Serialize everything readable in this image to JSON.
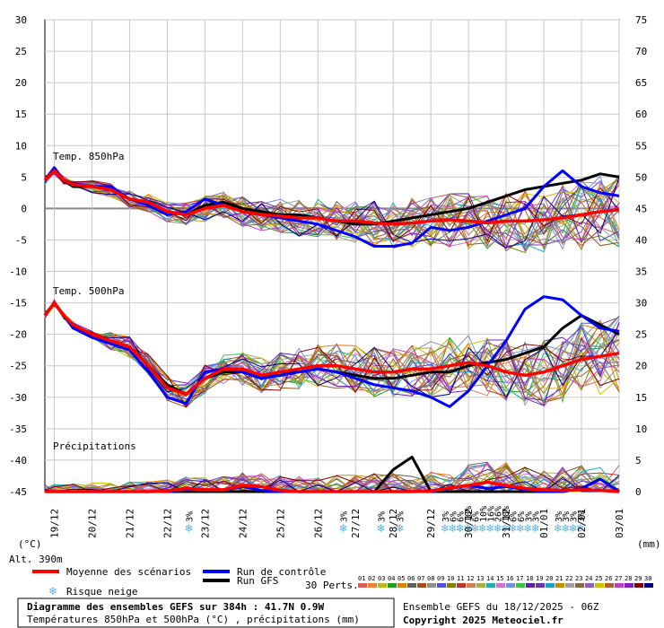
{
  "chart_data": {
    "type": "line",
    "title": "Diagramme des ensembles GEFS sur 384h : 41.7N 0.9W",
    "subtitle": "Températures 850hPa et 500hPa (°C) , précipitations (mm)",
    "run_info": "Ensemble GEFS du 18/12/2025 - 06Z",
    "copyright": "Copyright 2025 Meteociel.fr",
    "altitude": "Alt. 390m",
    "left_axis_unit": "(°C)",
    "right_axis_unit": "(mm)",
    "left_ticks": [
      "30",
      "25",
      "20",
      "15",
      "10",
      "5",
      "0",
      "-5",
      "-10",
      "-15",
      "-20",
      "-25",
      "-30",
      "-35",
      "-40",
      "-45"
    ],
    "right_ticks": [
      "75",
      "70",
      "65",
      "60",
      "55",
      "50",
      "45",
      "40",
      "35",
      "30",
      "25",
      "20",
      "15",
      "10",
      "5",
      "0"
    ],
    "ylim_left": [
      -45,
      30
    ],
    "x_dates": [
      "19/12",
      "20/12",
      "21/12",
      "22/12",
      "23/12",
      "24/12",
      "25/12",
      "26/12",
      "27/12",
      "28/12",
      "29/12",
      "30/12",
      "31/12",
      "01/01",
      "02/01",
      "03/01"
    ],
    "panel_labels": {
      "t850": "Temp. 850hPa",
      "t500": "Temp. 500hPa",
      "precip": "Précipitations"
    },
    "legend": {
      "mean": "Moyenne des scénarios",
      "control": "Run de contrôle",
      "gfs": "Run GFS",
      "snow": "Risque neige",
      "perts": "30 Perts.",
      "colors": {
        "mean": "#ff0000",
        "control": "#0000ff",
        "gfs": "#000000"
      },
      "member_numbers": [
        "01",
        "02",
        "03",
        "04",
        "05",
        "06",
        "07",
        "08",
        "09",
        "10",
        "11",
        "12",
        "13",
        "14",
        "15",
        "16",
        "17",
        "18",
        "19",
        "20",
        "21",
        "22",
        "23",
        "24",
        "25",
        "26",
        "27",
        "28",
        "29",
        "30"
      ],
      "member_colors": [
        "#e05a5a",
        "#f08030",
        "#b8b820",
        "#20a020",
        "#e08000",
        "#606060",
        "#a05020",
        "#909090",
        "#5050e0",
        "#808000",
        "#c03030",
        "#d08050",
        "#b0b040",
        "#20b0b0",
        "#d070d0",
        "#7090e0",
        "#40c040",
        "#6020a0",
        "#7030b0",
        "#20a0c0",
        "#c09000",
        "#a0a0a0",
        "#8a6a3a",
        "#9060c0",
        "#d0c000",
        "#b06030",
        "#c040c0",
        "#8020c0",
        "#800000",
        "#000080"
      ]
    },
    "snow_risk_label": "3%",
    "snow_risk_dates_x": [
      22.6,
      26.7,
      27.7,
      28.2,
      29.4,
      29.6,
      29.8,
      30.0,
      30.2,
      30.4,
      30.6,
      30.8,
      31.0,
      31.2,
      31.4,
      31.6,
      31.8,
      32.4,
      32.6,
      32.8,
      33.0
    ],
    "snow_risk_labels": [
      "3%",
      "3%",
      "3%",
      "3%",
      "3%",
      "6%",
      "6%",
      "10%",
      "6%",
      "10%",
      "16%",
      "26%",
      "10%",
      "6%",
      "6%",
      "3%",
      "3%",
      "3%",
      "3%",
      "3%",
      "3%"
    ],
    "t850": {
      "x": [
        18.75,
        19,
        19.25,
        19.5,
        20,
        20.5,
        21,
        21.5,
        22,
        22.5,
        23,
        23.5,
        24,
        24.5,
        25,
        25.5,
        26,
        26.5,
        27,
        27.5,
        28,
        28.5,
        29,
        29.5,
        30,
        30.5,
        31,
        31.5,
        32,
        32.5,
        33,
        33.5,
        34
      ],
      "mean": [
        4.5,
        6,
        4.5,
        3.8,
        3.5,
        3,
        1.5,
        1,
        -0.5,
        -1,
        0,
        0.5,
        -0.5,
        -1,
        -1.2,
        -1.5,
        -1.5,
        -2,
        -2,
        -2.3,
        -2.5,
        -2.3,
        -2,
        -1.8,
        -2,
        -2.3,
        -2,
        -2,
        -1.8,
        -1.5,
        -1,
        -0.5,
        -0.2
      ],
      "control": [
        4.5,
        6.5,
        4.5,
        4,
        3.5,
        3.5,
        1.5,
        0.5,
        -1,
        -0.5,
        1.5,
        0.5,
        -0.5,
        -1,
        -1.5,
        -2,
        -2.5,
        -3.5,
        -4.5,
        -6,
        -6,
        -5.5,
        -3,
        -3.5,
        -3,
        -2,
        -1,
        0,
        3.5,
        6,
        3.5,
        2.5,
        2
      ],
      "gfs": [
        4.5,
        6,
        4.5,
        3.5,
        3.5,
        3,
        1.5,
        1,
        -0.5,
        -1,
        0.5,
        1,
        0,
        -0.5,
        -1,
        -1,
        -1.5,
        -2,
        -2.5,
        -2.5,
        -2,
        -1.5,
        -1,
        -0.5,
        0,
        1,
        2,
        3,
        3.5,
        4,
        4.5,
        5.5,
        5
      ]
    },
    "t500": {
      "x": [
        18.75,
        19,
        19.25,
        19.5,
        20,
        20.5,
        21,
        21.5,
        22,
        22.5,
        23,
        23.5,
        24,
        24.5,
        25,
        25.5,
        26,
        26.5,
        27,
        27.5,
        28,
        28.5,
        29,
        29.5,
        30,
        30.5,
        31,
        31.5,
        32,
        32.5,
        33,
        33.5,
        34
      ],
      "mean": [
        -17,
        -15,
        -17,
        -18.5,
        -20,
        -21,
        -22,
        -25,
        -28.5,
        -29.5,
        -27,
        -25.5,
        -25.5,
        -26.5,
        -26,
        -25.5,
        -25,
        -25,
        -25.5,
        -26,
        -26,
        -25.5,
        -25.5,
        -25,
        -24.5,
        -25,
        -26,
        -26.5,
        -26,
        -25,
        -24,
        -23.5,
        -23
      ],
      "control": [
        -17,
        -15,
        -17,
        -19,
        -20.5,
        -21.5,
        -22.5,
        -26,
        -30,
        -31,
        -26,
        -25.5,
        -26,
        -27,
        -26.5,
        -26,
        -25.5,
        -26,
        -27,
        -28,
        -28.5,
        -29,
        -30,
        -31.5,
        -29,
        -25,
        -21,
        -16,
        -14,
        -14.5,
        -17,
        -19,
        -19.5
      ],
      "gfs": [
        -17,
        -15,
        -17,
        -19,
        -20,
        -21,
        -22,
        -25,
        -28,
        -29.5,
        -27,
        -26,
        -26,
        -27,
        -26,
        -26,
        -25.5,
        -26,
        -26.5,
        -27,
        -27,
        -26.5,
        -26,
        -26,
        -25,
        -24.5,
        -24,
        -23,
        -22,
        -19,
        -17,
        -18.5,
        -20
      ]
    },
    "precip_mm": {
      "x": [
        18.75,
        19,
        19.5,
        20,
        20.5,
        21,
        21.5,
        22,
        22.5,
        23,
        23.5,
        24,
        24.5,
        25,
        25.5,
        26,
        26.5,
        27,
        27.5,
        28,
        28.5,
        29,
        29.5,
        30,
        30.5,
        31,
        31.5,
        32,
        32.5,
        33,
        33.5,
        34
      ],
      "mean": [
        0,
        0,
        0,
        0,
        0,
        0,
        0,
        0.1,
        0.5,
        0.3,
        0.3,
        1,
        0.8,
        0.2,
        0,
        0,
        0,
        0,
        0,
        0,
        0,
        0.1,
        0.6,
        1,
        1.5,
        1,
        0.5,
        0.3,
        0.2,
        0.3,
        0.2,
        0
      ],
      "control": [
        0,
        0,
        0,
        0,
        0,
        0,
        0,
        0,
        0.3,
        0.3,
        0.2,
        0.8,
        0.2,
        0,
        0,
        0,
        0,
        0,
        0,
        0,
        0,
        0,
        0.5,
        1,
        0.5,
        0.8,
        0.3,
        0,
        0,
        0.5,
        2,
        0
      ],
      "gfs": [
        0,
        0,
        0,
        0,
        0,
        0,
        0,
        0,
        0,
        0,
        0,
        0,
        0,
        0,
        0,
        0,
        0,
        0,
        0,
        3.5,
        5.5,
        0,
        0,
        0,
        0,
        0,
        0,
        0,
        0,
        0.5,
        2,
        0
      ]
    }
  }
}
